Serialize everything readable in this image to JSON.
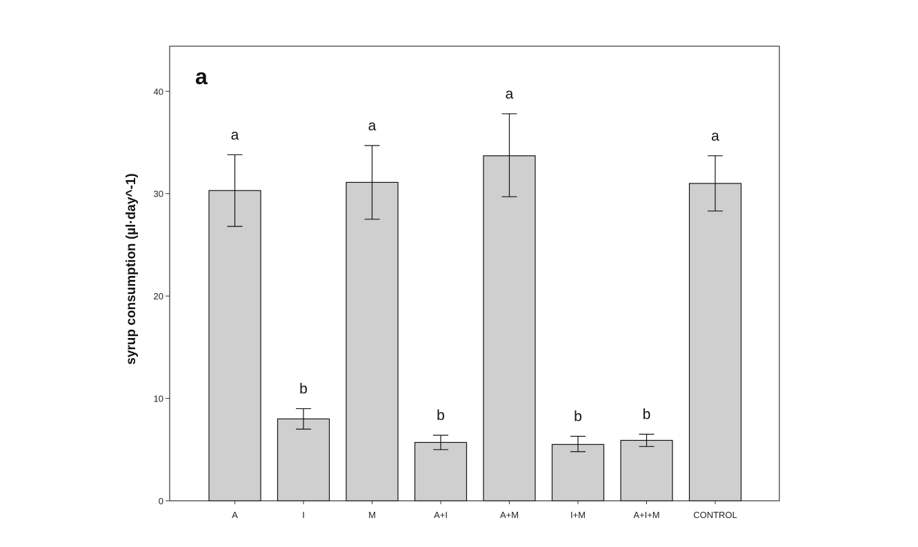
{
  "chart_data": {
    "type": "bar",
    "panel_label": "a",
    "ylabel": "syrup consumption (µl·day^-1)",
    "xlabel": "",
    "categories": [
      "A",
      "I",
      "M",
      "A+I",
      "A+M",
      "I+M",
      "A+I+M",
      "CONTROL"
    ],
    "values": [
      30.3,
      8.0,
      31.1,
      5.7,
      33.7,
      5.5,
      5.9,
      31.0
    ],
    "error_low": [
      26.8,
      7.0,
      27.5,
      5.0,
      29.7,
      4.8,
      5.3,
      28.3
    ],
    "error_high": [
      33.8,
      9.0,
      34.7,
      6.4,
      37.8,
      6.3,
      6.5,
      33.7
    ],
    "significance": [
      "a",
      "b",
      "a",
      "b",
      "a",
      "b",
      "b",
      "a"
    ],
    "ylim": [
      0,
      44.4
    ],
    "yticks": [
      0,
      10,
      20,
      30,
      40
    ],
    "grid": false,
    "colors": {
      "bar_fill": "#cfcfcf",
      "bar_stroke": "#111111",
      "axis": "#333333"
    }
  }
}
